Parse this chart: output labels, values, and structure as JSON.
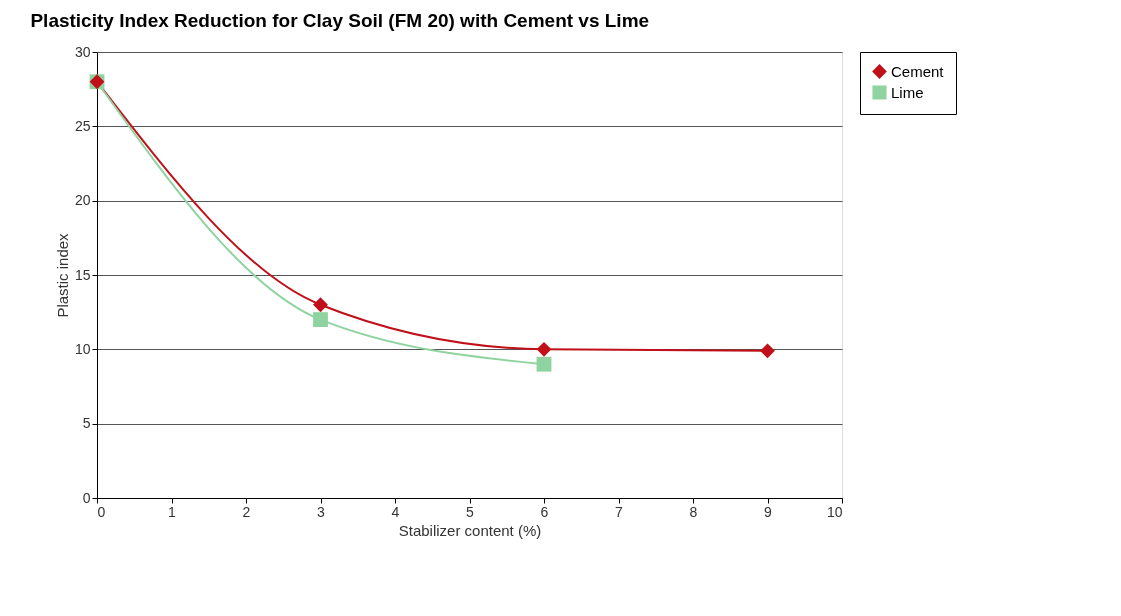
{
  "chart_data": {
    "type": "line",
    "title": "Plasticity Index Reduction for Clay Soil (FM 20) with Cement vs Lime",
    "xlabel": "Stabilizer content (%)",
    "ylabel": "Plastic index",
    "xlim": [
      0,
      10
    ],
    "xticks": [
      0,
      1,
      2,
      3,
      4,
      5,
      6,
      7,
      8,
      9,
      10
    ],
    "ylim": [
      0,
      30
    ],
    "yticks": [
      0,
      5,
      10,
      15,
      20,
      25,
      30
    ],
    "grid": "y",
    "legend": "right",
    "series": [
      {
        "name": "Cement",
        "color": "#c0101a",
        "marker": "diamond",
        "x": [
          0,
          3,
          6,
          9
        ],
        "values": [
          28,
          13,
          10,
          9.9
        ]
      },
      {
        "name": "Lime",
        "color": "#8fd4a0",
        "marker": "square",
        "x": [
          0,
          3,
          6
        ],
        "values": [
          28,
          12,
          9
        ]
      }
    ]
  }
}
